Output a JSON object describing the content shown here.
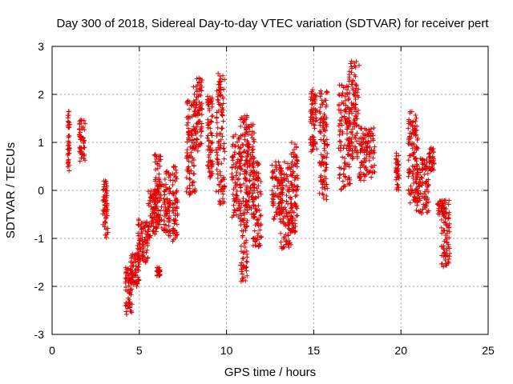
{
  "chart_data": {
    "type": "scatter",
    "title": "Day 300 of 2018, Sidereal Day-to-day VTEC variation (SDTVAR) for receiver pert",
    "xlabel": "GPS time / hours",
    "ylabel": "SDTVAR / TECUs",
    "xlim": [
      0,
      25
    ],
    "ylim": [
      -3,
      3
    ],
    "xticks": [
      "0",
      "5",
      "10",
      "15",
      "20",
      "25"
    ],
    "yticks": [
      "3",
      "2",
      "1",
      "0",
      "-1",
      "-2",
      "-3"
    ],
    "xtick_values": [
      0,
      5,
      10,
      15,
      20,
      25
    ],
    "ytick_values": [
      3,
      2,
      1,
      0,
      -1,
      -2,
      -3
    ],
    "grid": true,
    "marker": "+",
    "color": "#e00000",
    "clusters": [
      {
        "x": [
          0.9,
          1.0
        ],
        "y": [
          0.4,
          1.65
        ]
      },
      {
        "x": [
          1.55,
          1.9
        ],
        "y": [
          0.6,
          1.55
        ]
      },
      {
        "x": [
          2.9,
          3.2
        ],
        "y": [
          -1.0,
          0.2
        ]
      },
      {
        "x": [
          4.2,
          4.6
        ],
        "y": [
          -2.6,
          -1.6
        ]
      },
      {
        "x": [
          4.5,
          5.0
        ],
        "y": [
          -2.0,
          -1.3
        ]
      },
      {
        "x": [
          4.9,
          5.5
        ],
        "y": [
          -1.5,
          -0.6
        ]
      },
      {
        "x": [
          5.5,
          6.0
        ],
        "y": [
          -1.0,
          0.0
        ]
      },
      {
        "x": [
          5.8,
          6.3
        ],
        "y": [
          -0.8,
          0.8
        ]
      },
      {
        "x": [
          6.0,
          6.2
        ],
        "y": [
          -1.8,
          -1.6
        ]
      },
      {
        "x": [
          6.4,
          6.8
        ],
        "y": [
          -1.0,
          0.4
        ]
      },
      {
        "x": [
          6.9,
          7.2
        ],
        "y": [
          -1.1,
          0.5
        ]
      },
      {
        "x": [
          7.7,
          8.2
        ],
        "y": [
          -0.1,
          1.95
        ]
      },
      {
        "x": [
          8.1,
          8.6
        ],
        "y": [
          0.8,
          2.35
        ]
      },
      {
        "x": [
          8.9,
          9.2
        ],
        "y": [
          0.2,
          2.0
        ]
      },
      {
        "x": [
          9.4,
          9.9
        ],
        "y": [
          -0.3,
          2.45
        ]
      },
      {
        "x": [
          10.3,
          10.8
        ],
        "y": [
          -0.6,
          1.2
        ]
      },
      {
        "x": [
          10.8,
          11.2
        ],
        "y": [
          -1.9,
          1.6
        ]
      },
      {
        "x": [
          11.1,
          11.6
        ],
        "y": [
          -0.5,
          1.4
        ]
      },
      {
        "x": [
          11.5,
          12.0
        ],
        "y": [
          -1.2,
          0.6
        ]
      },
      {
        "x": [
          12.6,
          13.2
        ],
        "y": [
          -0.6,
          0.6
        ]
      },
      {
        "x": [
          13.1,
          13.7
        ],
        "y": [
          -1.25,
          0.6
        ]
      },
      {
        "x": [
          13.7,
          14.1
        ],
        "y": [
          -0.9,
          1.0
        ]
      },
      {
        "x": [
          14.8,
          15.2
        ],
        "y": [
          0.8,
          2.1
        ]
      },
      {
        "x": [
          15.3,
          15.8
        ],
        "y": [
          -0.2,
          2.1
        ]
      },
      {
        "x": [
          16.4,
          17.1
        ],
        "y": [
          0.0,
          2.2
        ]
      },
      {
        "x": [
          17.0,
          17.6
        ],
        "y": [
          0.6,
          2.7
        ]
      },
      {
        "x": [
          17.6,
          18.5
        ],
        "y": [
          0.2,
          1.3
        ]
      },
      {
        "x": [
          19.7,
          19.9
        ],
        "y": [
          0.0,
          0.8
        ]
      },
      {
        "x": [
          20.4,
          21.0
        ],
        "y": [
          -0.3,
          1.65
        ]
      },
      {
        "x": [
          20.8,
          21.6
        ],
        "y": [
          -0.5,
          0.7
        ]
      },
      {
        "x": [
          21.6,
          21.9
        ],
        "y": [
          0.4,
          0.9
        ]
      },
      {
        "x": [
          22.1,
          22.5
        ],
        "y": [
          -0.2,
          -0.5
        ]
      },
      {
        "x": [
          22.3,
          22.8
        ],
        "y": [
          -1.6,
          -0.2
        ]
      }
    ]
  }
}
